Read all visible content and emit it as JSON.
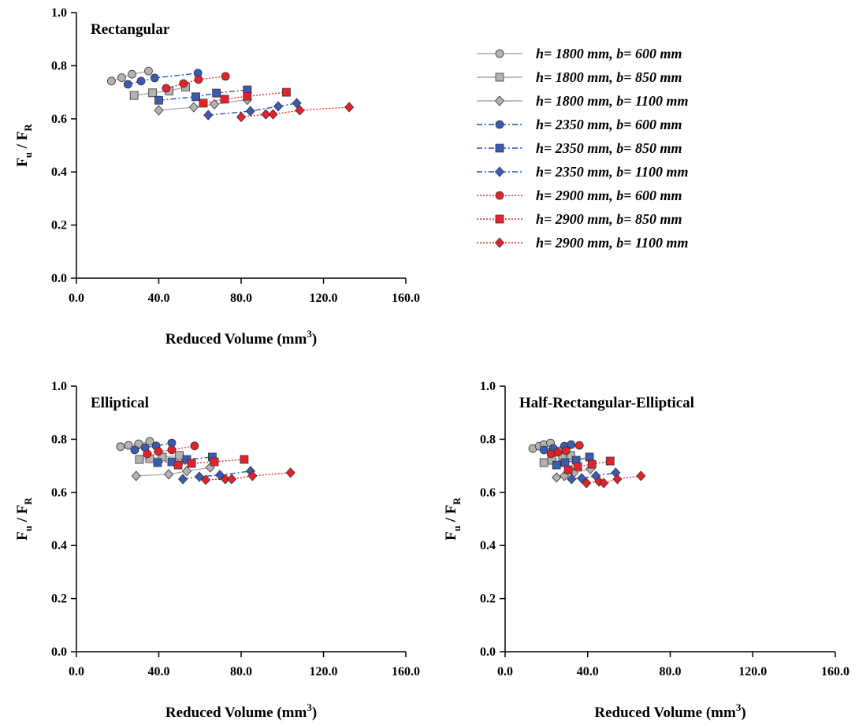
{
  "chart_data": [
    {
      "type": "scatter",
      "title": "Rectangular",
      "xlabel": [
        "Reduced Volume (mm",
        "3",
        ")"
      ],
      "ylabel": [
        "F",
        "u",
        " / F",
        "R"
      ],
      "xlim": [
        0,
        160
      ],
      "ylim": [
        0,
        1
      ],
      "xticks": [
        {
          "value": 0,
          "label": "0.0"
        },
        {
          "value": 40,
          "label": "40.0"
        },
        {
          "value": 80,
          "label": "80.0"
        },
        {
          "value": 120,
          "label": "120.0"
        },
        {
          "value": 160,
          "label": "160.0"
        }
      ],
      "yticks": [
        {
          "value": 0,
          "label": "0.0"
        },
        {
          "value": 0.2,
          "label": "0.2"
        },
        {
          "value": 0.4,
          "label": "0.4"
        },
        {
          "value": 0.6,
          "label": "0.6"
        },
        {
          "value": 0.8,
          "label": "0.8"
        },
        {
          "value": 1,
          "label": "1.0"
        }
      ],
      "legend": "right",
      "series": [
        {
          "name": "h= 1800 mm, b= 600 mm",
          "color": "#b3b3b3",
          "line_color": "#a8a8a8",
          "line_style": "solid",
          "marker": "circle",
          "x": [
            17,
            22,
            27,
            35
          ],
          "values": [
            0.742,
            0.755,
            0.768,
            0.78
          ]
        },
        {
          "name": "h= 1800 mm, b= 850 mm",
          "color": "#b3b3b3",
          "line_color": "#a8a8a8",
          "line_style": "solid",
          "marker": "square",
          "x": [
            28,
            37,
            45,
            53
          ],
          "values": [
            0.688,
            0.698,
            0.705,
            0.72
          ]
        },
        {
          "name": "h= 1800 mm, b= 1100 mm",
          "color": "#b3b3b3",
          "line_color": "#a8a8a8",
          "line_style": "solid",
          "marker": "diamond",
          "x": [
            40,
            57,
            67,
            83
          ],
          "values": [
            0.632,
            0.644,
            0.655,
            0.672
          ]
        },
        {
          "name": "h= 2350 mm, b= 600 mm",
          "color": "#3a5bb5",
          "line_color": "#2b48a0",
          "line_style": "dashed",
          "marker": "circle",
          "x": [
            25,
            31.4,
            38,
            59
          ],
          "values": [
            0.73,
            0.742,
            0.754,
            0.772
          ]
        },
        {
          "name": "h= 2350 mm, b= 850 mm",
          "color": "#3a5bb5",
          "line_color": "#2b48a0",
          "line_style": "dashed",
          "marker": "square",
          "x": [
            40,
            58,
            68,
            83
          ],
          "values": [
            0.67,
            0.683,
            0.697,
            0.709
          ]
        },
        {
          "name": "h= 2350 mm, b= 1100 mm",
          "color": "#3a5bb5",
          "line_color": "#2b48a0",
          "line_style": "dashed",
          "marker": "diamond",
          "x": [
            64,
            84.5,
            98,
            107
          ],
          "values": [
            0.614,
            0.629,
            0.647,
            0.659
          ]
        },
        {
          "name": "h= 2900 mm, b= 600 mm",
          "color": "#e8202a",
          "line_color": "#e8202a",
          "line_style": "dotted",
          "marker": "circle",
          "x": [
            43.6,
            52,
            59.3,
            72.4
          ],
          "values": [
            0.715,
            0.733,
            0.748,
            0.76
          ]
        },
        {
          "name": "h= 2900 mm, b= 850 mm",
          "color": "#e8202a",
          "line_color": "#e8202a",
          "line_style": "dotted",
          "marker": "square",
          "x": [
            61.6,
            72,
            83,
            102
          ],
          "values": [
            0.659,
            0.674,
            0.685,
            0.7
          ]
        },
        {
          "name": "h= 2900 mm, b= 1100 mm",
          "color": "#e8202a",
          "line_color": "#e8202a",
          "line_style": "dotted",
          "marker": "diamond",
          "x": [
            80,
            92,
            95.5,
            108.5,
            132.5
          ],
          "values": [
            0.607,
            0.617,
            0.617,
            0.632,
            0.644
          ]
        }
      ]
    },
    {
      "type": "scatter",
      "title": "Elliptical",
      "xlabel": [
        "Reduced Volume (mm",
        "3",
        ")"
      ],
      "ylabel": [
        "F",
        "u",
        " / F",
        "R"
      ],
      "xlim": [
        0,
        160
      ],
      "ylim": [
        0,
        1
      ],
      "xticks": [
        {
          "value": 0,
          "label": "0.0"
        },
        {
          "value": 40,
          "label": "40.0"
        },
        {
          "value": 80,
          "label": "80.0"
        },
        {
          "value": 120,
          "label": "120.0"
        },
        {
          "value": 160,
          "label": "160.0"
        }
      ],
      "yticks": [
        {
          "value": 0,
          "label": "0.0"
        },
        {
          "value": 0.2,
          "label": "0.2"
        },
        {
          "value": 0.4,
          "label": "0.4"
        },
        {
          "value": 0.6,
          "label": "0.6"
        },
        {
          "value": 0.8,
          "label": "0.8"
        },
        {
          "value": 1,
          "label": "1.0"
        }
      ],
      "series": [
        {
          "color": "#b3b3b3",
          "line_color": "#a8a8a8",
          "line_style": "solid",
          "marker": "circle",
          "x": [
            21.4,
            25.3,
            30.2,
            35.6
          ],
          "values": [
            0.772,
            0.777,
            0.783,
            0.792
          ]
        },
        {
          "color": "#b3b3b3",
          "line_color": "#a8a8a8",
          "line_style": "solid",
          "marker": "square",
          "x": [
            30.6,
            35.6,
            41.7,
            50
          ],
          "values": [
            0.724,
            0.727,
            0.733,
            0.739
          ]
        },
        {
          "color": "#b3b3b3",
          "line_color": "#a8a8a8",
          "line_style": "solid",
          "marker": "diamond",
          "x": [
            29,
            44.8,
            53.6,
            65
          ],
          "values": [
            0.662,
            0.668,
            0.68,
            0.694
          ]
        },
        {
          "color": "#3a5bb5",
          "line_color": "#2b48a0",
          "line_style": "dashed",
          "marker": "circle",
          "x": [
            28.3,
            33.3,
            38.7,
            46.3
          ],
          "values": [
            0.76,
            0.769,
            0.775,
            0.786
          ]
        },
        {
          "color": "#3a5bb5",
          "line_color": "#2b48a0",
          "line_style": "dashed",
          "marker": "square",
          "x": [
            39.4,
            46.3,
            53.6,
            66
          ],
          "values": [
            0.712,
            0.715,
            0.724,
            0.733
          ]
        },
        {
          "color": "#3a5bb5",
          "line_color": "#2b48a0",
          "line_style": "dashed",
          "marker": "diamond",
          "x": [
            51.7,
            59.7,
            69.7,
            84.6
          ],
          "values": [
            0.65,
            0.659,
            0.665,
            0.68
          ]
        },
        {
          "color": "#e8202a",
          "line_color": "#e8202a",
          "line_style": "dotted",
          "marker": "circle",
          "x": [
            34.4,
            39.8,
            46.3,
            57.4
          ],
          "values": [
            0.745,
            0.754,
            0.76,
            0.775
          ]
        },
        {
          "color": "#e8202a",
          "line_color": "#e8202a",
          "line_style": "dotted",
          "marker": "square",
          "x": [
            49.4,
            55.9,
            67,
            81.5
          ],
          "values": [
            0.703,
            0.709,
            0.715,
            0.724
          ]
        },
        {
          "color": "#e8202a",
          "line_color": "#e8202a",
          "line_style": "dotted",
          "marker": "diamond",
          "x": [
            62.8,
            72.3,
            75.4,
            85.5,
            104
          ],
          "values": [
            0.647,
            0.65,
            0.65,
            0.662,
            0.674
          ]
        }
      ]
    },
    {
      "type": "scatter",
      "title": "Half-Rectangular-Elliptical",
      "xlabel": [
        "Reduced Volume (mm",
        "3",
        ")"
      ],
      "ylabel": [
        "F",
        "u",
        " / F",
        "R"
      ],
      "xlim": [
        0,
        160
      ],
      "ylim": [
        0,
        1
      ],
      "xticks": [
        {
          "value": 0,
          "label": "0.0"
        },
        {
          "value": 40,
          "label": "40.0"
        },
        {
          "value": 80,
          "label": "80.0"
        },
        {
          "value": 120,
          "label": "120.0"
        },
        {
          "value": 160,
          "label": "160.0"
        }
      ],
      "yticks": [
        {
          "value": 0,
          "label": "0.0"
        },
        {
          "value": 0.2,
          "label": "0.2"
        },
        {
          "value": 0.4,
          "label": "0.4"
        },
        {
          "value": 0.6,
          "label": "0.6"
        },
        {
          "value": 0.8,
          "label": "0.8"
        },
        {
          "value": 1,
          "label": "1.0"
        }
      ],
      "series": [
        {
          "color": "#b3b3b3",
          "line_color": "#a8a8a8",
          "line_style": "solid",
          "marker": "circle",
          "x": [
            13.4,
            16.5,
            18.8,
            22
          ],
          "values": [
            0.765,
            0.774,
            0.78,
            0.786
          ]
        },
        {
          "color": "#b3b3b3",
          "line_color": "#a8a8a8",
          "line_style": "solid",
          "marker": "square",
          "x": [
            18.8,
            22.6,
            27.9,
            31.8
          ],
          "values": [
            0.712,
            0.721,
            0.733,
            0.739
          ]
        },
        {
          "color": "#b3b3b3",
          "line_color": "#a8a8a8",
          "line_style": "solid",
          "marker": "diamond",
          "x": [
            24.9,
            28.7,
            33.3,
            41.3
          ],
          "values": [
            0.656,
            0.662,
            0.674,
            0.688
          ]
        },
        {
          "color": "#3a5bb5",
          "line_color": "#2b48a0",
          "line_style": "dashed",
          "marker": "circle",
          "x": [
            18.8,
            23.3,
            28.7,
            32
          ],
          "values": [
            0.76,
            0.766,
            0.774,
            0.78
          ]
        },
        {
          "color": "#3a5bb5",
          "line_color": "#2b48a0",
          "line_style": "dashed",
          "marker": "square",
          "x": [
            24.9,
            29,
            34.4,
            40.9
          ],
          "values": [
            0.703,
            0.712,
            0.721,
            0.733
          ]
        },
        {
          "color": "#3a5bb5",
          "line_color": "#2b48a0",
          "line_style": "dashed",
          "marker": "diamond",
          "x": [
            32.2,
            37.1,
            44,
            53.6
          ],
          "values": [
            0.65,
            0.653,
            0.662,
            0.674
          ]
        },
        {
          "color": "#e8202a",
          "line_color": "#e8202a",
          "line_style": "dotted",
          "marker": "circle",
          "x": [
            22.2,
            25.6,
            29.5,
            36
          ],
          "values": [
            0.745,
            0.751,
            0.757,
            0.777
          ]
        },
        {
          "color": "#e8202a",
          "line_color": "#e8202a",
          "line_style": "dotted",
          "marker": "square",
          "x": [
            30.6,
            35.2,
            42.1,
            50.9
          ],
          "values": [
            0.685,
            0.697,
            0.706,
            0.718
          ]
        },
        {
          "color": "#e8202a",
          "line_color": "#e8202a",
          "line_style": "dotted",
          "marker": "diamond",
          "x": [
            39.4,
            45.5,
            47.8,
            54.4,
            65.8
          ],
          "values": [
            0.635,
            0.641,
            0.635,
            0.65,
            0.662
          ]
        }
      ]
    }
  ]
}
